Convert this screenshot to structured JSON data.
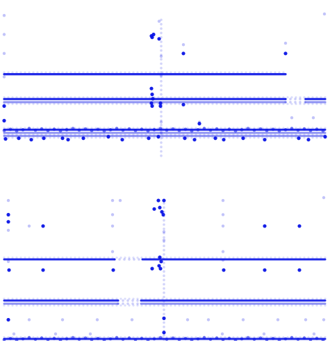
{
  "chart_data": [
    {
      "type": "scatter",
      "title": "",
      "xlabel": "",
      "ylabel": "",
      "grid": false,
      "legend": "none",
      "xlim": [
        0,
        475
      ],
      "ylim": [
        0,
        1
      ],
      "series": [
        {
          "name": "",
          "color": "#0a14e6",
          "points_dark": [
            {
              "x": 218,
              "y": 0.84
            },
            {
              "x": 219,
              "y": 0.83
            },
            {
              "x": 221,
              "y": 0.85
            },
            {
              "x": 229,
              "y": 0.82
            },
            {
              "x": 264,
              "y": 0.72
            },
            {
              "x": 411,
              "y": 0.72
            },
            {
              "x": 218,
              "y": 0.48
            },
            {
              "x": 219,
              "y": 0.44
            },
            {
              "x": 220,
              "y": 0.41
            },
            {
              "x": 218,
              "y": 0.38
            },
            {
              "x": 219,
              "y": 0.36
            },
            {
              "x": 231,
              "y": 0.38
            },
            {
              "x": 231,
              "y": 0.36
            },
            {
              "x": 264,
              "y": 0.37
            },
            {
              "x": 6,
              "y": 0.36
            },
            {
              "x": 6,
              "y": 0.26
            },
            {
              "x": 8,
              "y": 0.135
            },
            {
              "x": 27,
              "y": 0.14
            },
            {
              "x": 45,
              "y": 0.13
            },
            {
              "x": 63,
              "y": 0.14
            },
            {
              "x": 90,
              "y": 0.14
            },
            {
              "x": 98,
              "y": 0.13
            },
            {
              "x": 120,
              "y": 0.14
            },
            {
              "x": 156,
              "y": 0.15
            },
            {
              "x": 176,
              "y": 0.13
            },
            {
              "x": 214,
              "y": 0.14
            },
            {
              "x": 228,
              "y": 0.15
            },
            {
              "x": 266,
              "y": 0.14
            },
            {
              "x": 280,
              "y": 0.13
            },
            {
              "x": 310,
              "y": 0.14
            },
            {
              "x": 322,
              "y": 0.13
            },
            {
              "x": 350,
              "y": 0.14
            },
            {
              "x": 381,
              "y": 0.13
            },
            {
              "x": 430,
              "y": 0.14
            },
            {
              "x": 444,
              "y": 0.13
            },
            {
              "x": 468,
              "y": 0.15
            },
            {
              "x": 287,
              "y": 0.24
            }
          ],
          "points_faint": [
            {
              "x": 6,
              "y": 0.98
            },
            {
              "x": 6,
              "y": 0.85
            },
            {
              "x": 229,
              "y": 0.94
            },
            {
              "x": 232,
              "y": 0.7
            },
            {
              "x": 232,
              "y": 0.57
            },
            {
              "x": 264,
              "y": 0.78
            },
            {
              "x": 411,
              "y": 0.79
            },
            {
              "x": 467,
              "y": 0.99
            },
            {
              "x": 6,
              "y": 0.72
            },
            {
              "x": 6,
              "y": 0.56
            },
            {
              "x": 232,
              "y": 0.25
            },
            {
              "x": 232,
              "y": 0.18
            },
            {
              "x": 287,
              "y": 0.25
            },
            {
              "x": 420,
              "y": 0.28
            },
            {
              "x": 451,
              "y": 0.28
            }
          ]
        }
      ]
    },
    {
      "type": "scatter",
      "title": "",
      "xlabel": "",
      "ylabel": "",
      "grid": false,
      "legend": "none",
      "xlim": [
        0,
        475
      ],
      "ylim": [
        0,
        1
      ],
      "series": [
        {
          "name": "",
          "color": "#0a14e6",
          "points_dark": [
            {
              "x": 228,
              "y": 0.98
            },
            {
              "x": 236,
              "y": 0.98
            },
            {
              "x": 230,
              "y": 0.93
            },
            {
              "x": 222,
              "y": 0.92
            },
            {
              "x": 233,
              "y": 0.9
            },
            {
              "x": 235,
              "y": 0.88
            },
            {
              "x": 12,
              "y": 0.88
            },
            {
              "x": 12,
              "y": 0.83
            },
            {
              "x": 62,
              "y": 0.8
            },
            {
              "x": 381,
              "y": 0.8
            },
            {
              "x": 431,
              "y": 0.8
            },
            {
              "x": 230,
              "y": 0.58
            },
            {
              "x": 232,
              "y": 0.55
            },
            {
              "x": 229,
              "y": 0.52
            },
            {
              "x": 231,
              "y": 0.5
            },
            {
              "x": 219,
              "y": 0.5
            },
            {
              "x": 13,
              "y": 0.49
            },
            {
              "x": 62,
              "y": 0.49
            },
            {
              "x": 163,
              "y": 0.49
            },
            {
              "x": 322,
              "y": 0.49
            },
            {
              "x": 381,
              "y": 0.49
            },
            {
              "x": 431,
              "y": 0.49
            },
            {
              "x": 12,
              "y": 0.14
            },
            {
              "x": 236,
              "y": 0.15
            },
            {
              "x": 236,
              "y": 0.05
            }
          ],
          "points_faint": [
            {
              "x": 12,
              "y": 0.98
            },
            {
              "x": 162,
              "y": 0.98
            },
            {
              "x": 173,
              "y": 0.98
            },
            {
              "x": 321,
              "y": 0.98
            },
            {
              "x": 466,
              "y": 1.0
            },
            {
              "x": 12,
              "y": 0.77
            },
            {
              "x": 42,
              "y": 0.8
            },
            {
              "x": 162,
              "y": 0.88
            },
            {
              "x": 162,
              "y": 0.8
            },
            {
              "x": 321,
              "y": 0.88
            },
            {
              "x": 321,
              "y": 0.8
            },
            {
              "x": 236,
              "y": 0.76
            },
            {
              "x": 236,
              "y": 0.7
            },
            {
              "x": 12,
              "y": 0.55
            },
            {
              "x": 162,
              "y": 0.62
            },
            {
              "x": 321,
              "y": 0.62
            },
            {
              "x": 321,
              "y": 0.56
            },
            {
              "x": 42,
              "y": 0.14
            },
            {
              "x": 90,
              "y": 0.14
            },
            {
              "x": 140,
              "y": 0.14
            },
            {
              "x": 190,
              "y": 0.14
            },
            {
              "x": 270,
              "y": 0.14
            },
            {
              "x": 300,
              "y": 0.14
            },
            {
              "x": 350,
              "y": 0.14
            },
            {
              "x": 400,
              "y": 0.14
            },
            {
              "x": 440,
              "y": 0.14
            },
            {
              "x": 466,
              "y": 0.14
            },
            {
              "x": 20,
              "y": 0.04
            },
            {
              "x": 80,
              "y": 0.04
            },
            {
              "x": 130,
              "y": 0.04
            },
            {
              "x": 320,
              "y": 0.04
            },
            {
              "x": 380,
              "y": 0.04
            },
            {
              "x": 452,
              "y": 0.04
            }
          ]
        }
      ]
    }
  ]
}
